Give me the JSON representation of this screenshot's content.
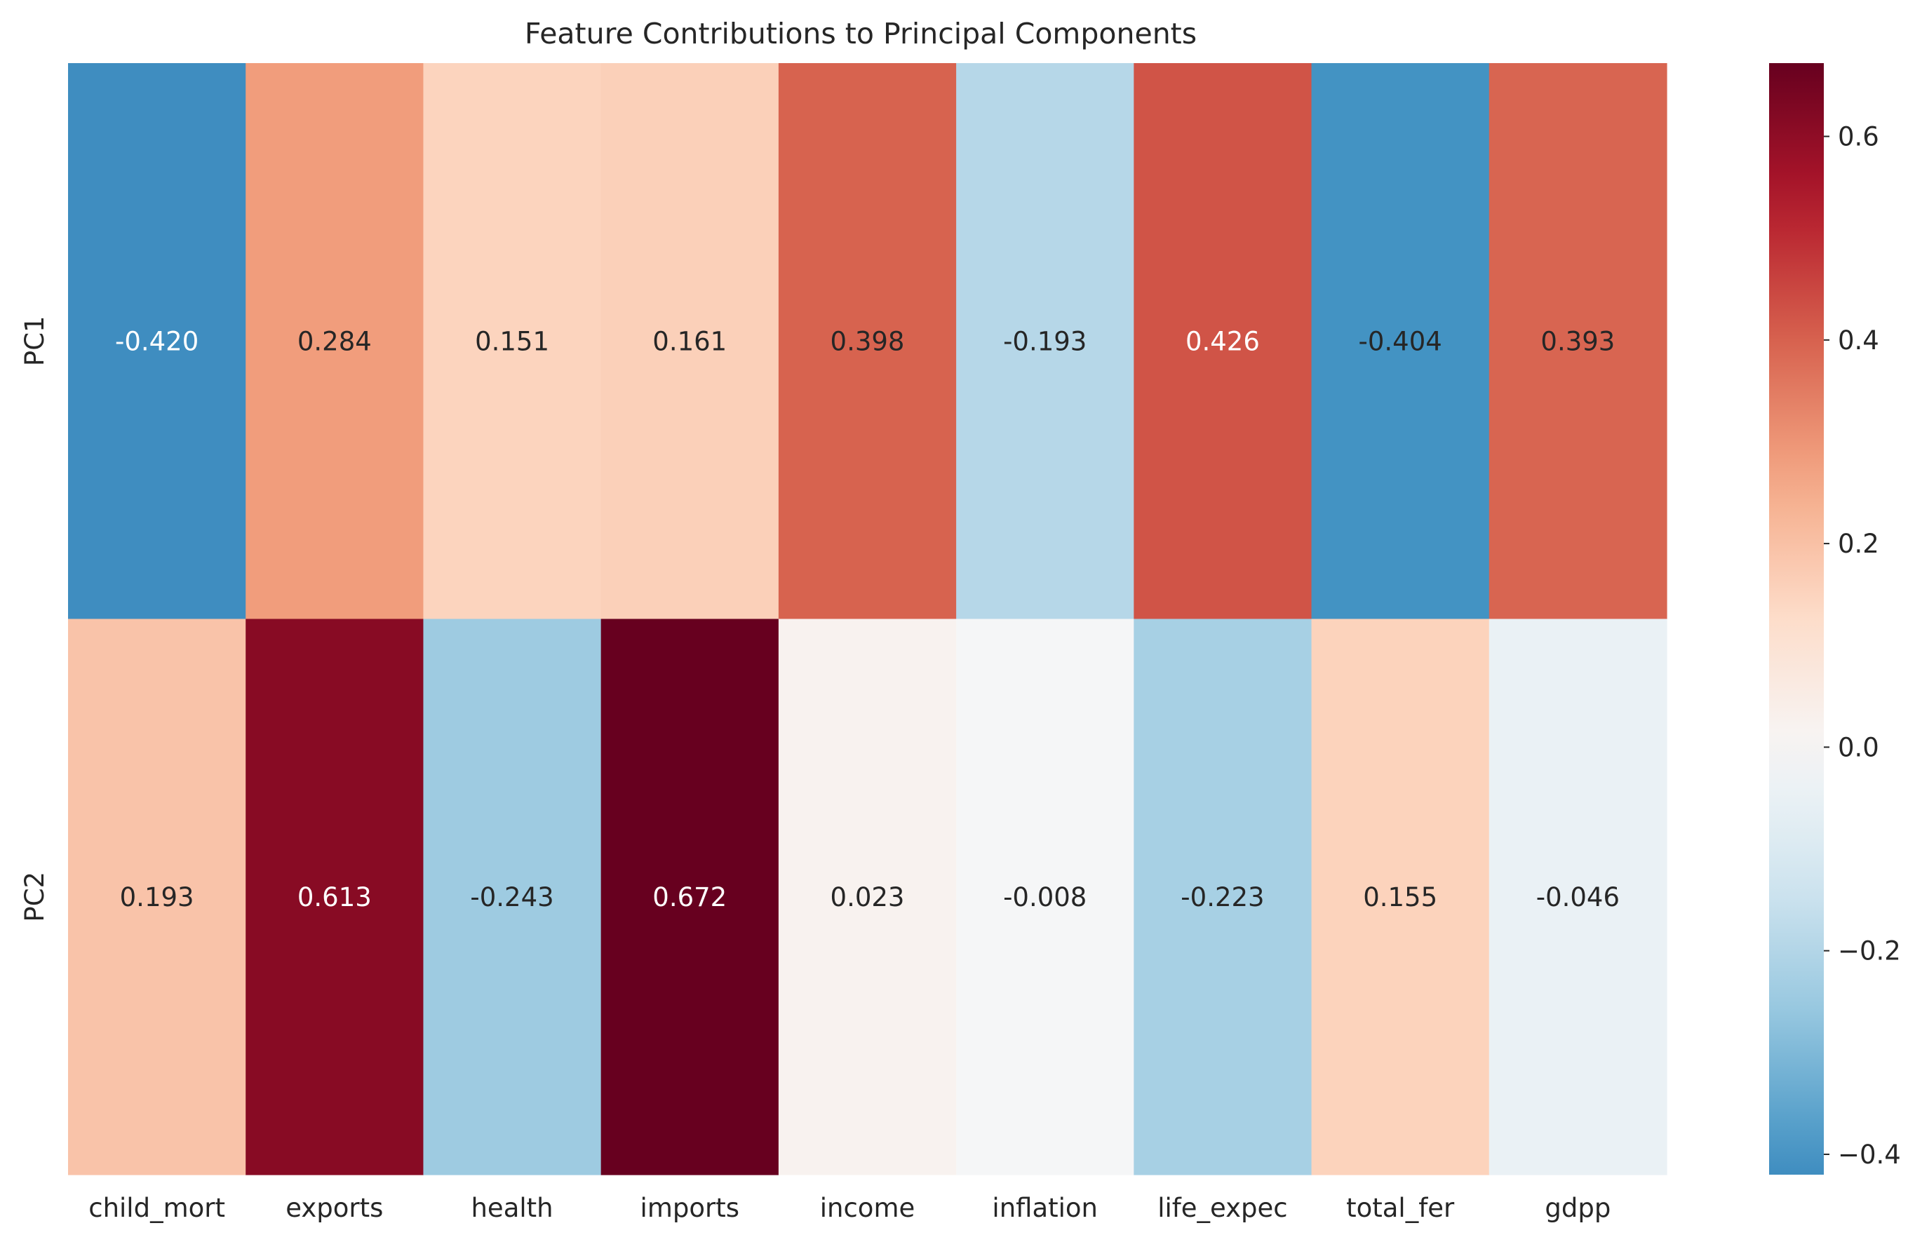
{
  "chart_data": {
    "type": "heatmap",
    "title": "Feature Contributions to Principal Components",
    "x_categories": [
      "child_mort",
      "exports",
      "health",
      "imports",
      "income",
      "inflation",
      "life_expec",
      "total_fer",
      "gdpp"
    ],
    "y_categories": [
      "PC1",
      "PC2"
    ],
    "values": [
      [
        -0.42,
        0.284,
        0.151,
        0.161,
        0.398,
        -0.193,
        0.426,
        -0.404,
        0.393
      ],
      [
        0.193,
        0.613,
        -0.243,
        0.672,
        0.023,
        -0.008,
        -0.223,
        0.155,
        -0.046
      ]
    ],
    "cell_labels": [
      [
        "-0.420",
        "0.284",
        "0.151",
        "0.161",
        "0.398",
        "-0.193",
        "0.426",
        "-0.404",
        "0.393"
      ],
      [
        "0.193",
        "0.613",
        "-0.243",
        "0.672",
        "0.023",
        "-0.008",
        "-0.223",
        "0.155",
        "-0.046"
      ]
    ],
    "colormap": "RdBu_r",
    "color_range": [
      -0.672,
      0.672
    ],
    "colorbar": {
      "ticks": [
        0.6,
        0.4,
        0.2,
        0.0,
        -0.2,
        -0.4
      ],
      "tick_labels": [
        "0.6",
        "0.4",
        "0.2",
        "0.0",
        "−0.2",
        "−0.4"
      ],
      "range": [
        -0.42,
        0.672
      ]
    },
    "grid": false,
    "legend": "colorbar-right"
  }
}
